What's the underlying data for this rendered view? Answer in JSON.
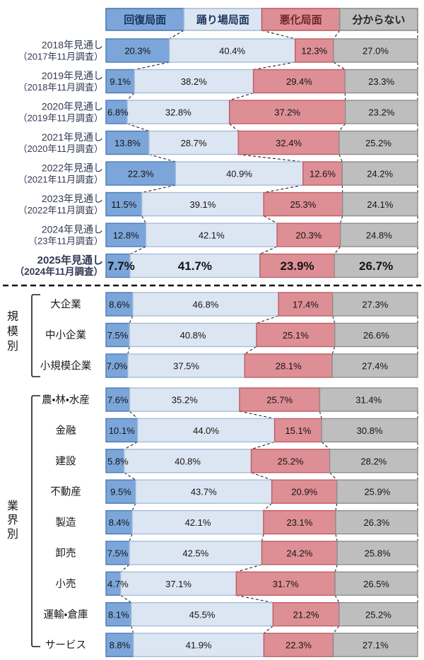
{
  "chart_data": {
    "type": "bar",
    "variant": "horizontal-stacked-100-percent",
    "unit": "%",
    "value_text_color": "#141414",
    "year_label_color": "#333a54",
    "group_label_color": "#1a1a1a",
    "connector_color": "#222222",
    "divider_color": "#111111",
    "legend": [
      {
        "label": "回復局面",
        "fill": "#7CA6D9",
        "border": "#4C7AB8",
        "text_color": "#17365D"
      },
      {
        "label": "踊り場局面",
        "fill": "#DCE6F3",
        "border": "#A8BCD9",
        "text_color": "#203A60"
      },
      {
        "label": "悪化局面",
        "fill": "#DD8F95",
        "border": "#C05C64",
        "text_color": "#732428"
      },
      {
        "label": "分からない",
        "fill": "#BEBEBE",
        "border": "#8E8E8E",
        "text_color": "#262626"
      }
    ],
    "sections": [
      {
        "id": "yearly",
        "bracket_label": null,
        "rows": [
          {
            "label_lines": [
              "2018年見通し",
              "（2017年11月調査）"
            ],
            "values": [
              20.3,
              40.4,
              12.3,
              27.0
            ]
          },
          {
            "label_lines": [
              "2019年見通し",
              "（2018年11月調査）"
            ],
            "values": [
              9.1,
              38.2,
              29.4,
              23.3
            ]
          },
          {
            "label_lines": [
              "2020年見通し",
              "（2019年11月調査）"
            ],
            "values": [
              6.8,
              32.8,
              37.2,
              23.2
            ]
          },
          {
            "label_lines": [
              "2021年見通し",
              "（2020年11月調査）"
            ],
            "values": [
              13.8,
              28.7,
              32.4,
              25.2
            ]
          },
          {
            "label_lines": [
              "2022年見通し",
              "（2021年11月調査）"
            ],
            "values": [
              22.3,
              40.9,
              12.6,
              24.2
            ]
          },
          {
            "label_lines": [
              "2023年見通し",
              "（2022年11月調査）"
            ],
            "values": [
              11.5,
              39.1,
              25.3,
              24.1
            ]
          },
          {
            "label_lines": [
              "2024年見通し",
              "（23年11月調査）"
            ],
            "values": [
              12.8,
              42.1,
              20.3,
              24.8
            ]
          },
          {
            "label_lines": [
              "2025年見通し",
              "（2024年11月調査）"
            ],
            "values": [
              7.7,
              41.7,
              23.9,
              26.7
            ],
            "emphasis": true
          }
        ]
      },
      {
        "id": "by-scale",
        "bracket_label": "規模別",
        "rows": [
          {
            "label_lines": [
              "大企業"
            ],
            "values": [
              8.6,
              46.8,
              17.4,
              27.3
            ]
          },
          {
            "label_lines": [
              "中小企業"
            ],
            "values": [
              7.5,
              40.8,
              25.1,
              26.6
            ]
          },
          {
            "label_lines": [
              "小規模企業"
            ],
            "values": [
              7.0,
              37.5,
              28.1,
              27.4
            ]
          }
        ]
      },
      {
        "id": "by-industry",
        "bracket_label": "業界別",
        "rows": [
          {
            "label_lines": [
              "農・林・水産"
            ],
            "values": [
              7.6,
              35.2,
              25.7,
              31.4
            ]
          },
          {
            "label_lines": [
              "金融"
            ],
            "values": [
              10.1,
              44.0,
              15.1,
              30.8
            ]
          },
          {
            "label_lines": [
              "建設"
            ],
            "values": [
              5.8,
              40.8,
              25.2,
              28.2
            ]
          },
          {
            "label_lines": [
              "不動産"
            ],
            "values": [
              9.5,
              43.7,
              20.9,
              25.9
            ]
          },
          {
            "label_lines": [
              "製造"
            ],
            "values": [
              8.4,
              42.1,
              23.1,
              26.3
            ]
          },
          {
            "label_lines": [
              "卸売"
            ],
            "values": [
              7.5,
              42.5,
              24.2,
              25.8
            ]
          },
          {
            "label_lines": [
              "小売"
            ],
            "values": [
              4.7,
              37.1,
              31.7,
              26.5
            ]
          },
          {
            "label_lines": [
              "運輸・倉庫"
            ],
            "values": [
              8.1,
              45.5,
              21.2,
              25.2
            ]
          },
          {
            "label_lines": [
              "サービス"
            ],
            "values": [
              8.8,
              41.9,
              22.3,
              27.1
            ]
          }
        ]
      }
    ]
  }
}
